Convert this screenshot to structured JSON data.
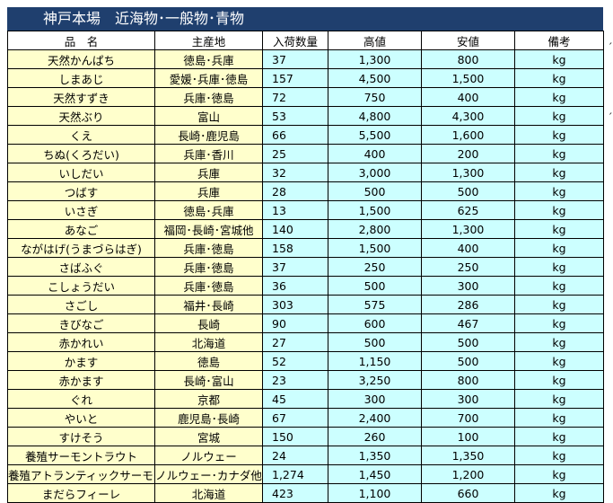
{
  "title": "神戸本場　近海物･一般物･青物",
  "headers": [
    "品　名",
    "主産地",
    "入荷数量",
    "高値",
    "安値",
    "備考"
  ],
  "rows": [
    {
      "name": "天然かんぱち",
      "origin": "徳島･兵庫",
      "qty": "37",
      "high": "1,300",
      "low": "800",
      "unit": "kg"
    },
    {
      "name": "しまあじ",
      "origin": "愛媛･兵庫･徳島",
      "qty": "157",
      "high": "4,500",
      "low": "1,500",
      "unit": "kg"
    },
    {
      "name": "天然すずき",
      "origin": "兵庫･徳島",
      "qty": "72",
      "high": "750",
      "low": "400",
      "unit": "kg"
    },
    {
      "name": "天然ぶり",
      "origin": "富山",
      "qty": "53",
      "high": "4,800",
      "low": "4,300",
      "unit": "kg"
    },
    {
      "name": "くえ",
      "origin": "長崎･鹿児島",
      "qty": "66",
      "high": "5,500",
      "low": "1,600",
      "unit": "kg"
    },
    {
      "name": "ちぬ(くろだい)",
      "origin": "兵庫･香川",
      "qty": "25",
      "high": "400",
      "low": "200",
      "unit": "kg"
    },
    {
      "name": "いしだい",
      "origin": "兵庫",
      "qty": "32",
      "high": "3,000",
      "low": "1,300",
      "unit": "kg"
    },
    {
      "name": "つばす",
      "origin": "兵庫",
      "qty": "28",
      "high": "500",
      "low": "500",
      "unit": "kg"
    },
    {
      "name": "いさぎ",
      "origin": "徳島･兵庫",
      "qty": "13",
      "high": "1,500",
      "low": "625",
      "unit": "kg"
    },
    {
      "name": "あなご",
      "origin": "福岡･長崎･宮城他",
      "qty": "140",
      "high": "2,800",
      "low": "1,300",
      "unit": "kg"
    },
    {
      "name": "ながはげ(うまづらはぎ)",
      "origin": "兵庫･徳島",
      "qty": "158",
      "high": "1,500",
      "low": "400",
      "unit": "kg"
    },
    {
      "name": "さばふぐ",
      "origin": "兵庫･徳島",
      "qty": "37",
      "high": "250",
      "low": "250",
      "unit": "kg"
    },
    {
      "name": "こしょうだい",
      "origin": "兵庫･徳島",
      "qty": "36",
      "high": "500",
      "low": "300",
      "unit": "kg"
    },
    {
      "name": "さごし",
      "origin": "福井･長崎",
      "qty": "303",
      "high": "575",
      "low": "286",
      "unit": "kg"
    },
    {
      "name": "きびなご",
      "origin": "長崎",
      "qty": "90",
      "high": "600",
      "low": "467",
      "unit": "kg"
    },
    {
      "name": "赤かれい",
      "origin": "北海道",
      "qty": "27",
      "high": "500",
      "low": "500",
      "unit": "kg"
    },
    {
      "name": "かます",
      "origin": "徳島",
      "qty": "52",
      "high": "1,150",
      "low": "500",
      "unit": "kg"
    },
    {
      "name": "赤かます",
      "origin": "長崎･富山",
      "qty": "23",
      "high": "3,250",
      "low": "800",
      "unit": "kg"
    },
    {
      "name": "ぐれ",
      "origin": "京都",
      "qty": "45",
      "high": "300",
      "low": "300",
      "unit": "kg"
    },
    {
      "name": "やいと",
      "origin": "鹿児島･長崎",
      "qty": "67",
      "high": "2,400",
      "low": "700",
      "unit": "kg"
    },
    {
      "name": "すけそう",
      "origin": "宮城",
      "qty": "150",
      "high": "260",
      "low": "100",
      "unit": "kg"
    },
    {
      "name": "養殖サーモントラウト",
      "origin": "ノルウェー",
      "qty": "24",
      "high": "1,350",
      "low": "1,350",
      "unit": "kg"
    },
    {
      "name": "養殖アトランティックサーモン",
      "origin": "ノルウェー･カナダ他",
      "qty": "1,274",
      "high": "1,450",
      "low": "1,200",
      "unit": "kg"
    },
    {
      "name": "まだらフィーレ",
      "origin": "北海道",
      "qty": "423",
      "high": "1,100",
      "low": "660",
      "unit": "kg"
    }
  ],
  "colors": {
    "title_bg": "#1f3f6e",
    "title_text": "#ffffff",
    "name_origin_bg": "#ffffcc",
    "value_bg": "#ccffff"
  }
}
